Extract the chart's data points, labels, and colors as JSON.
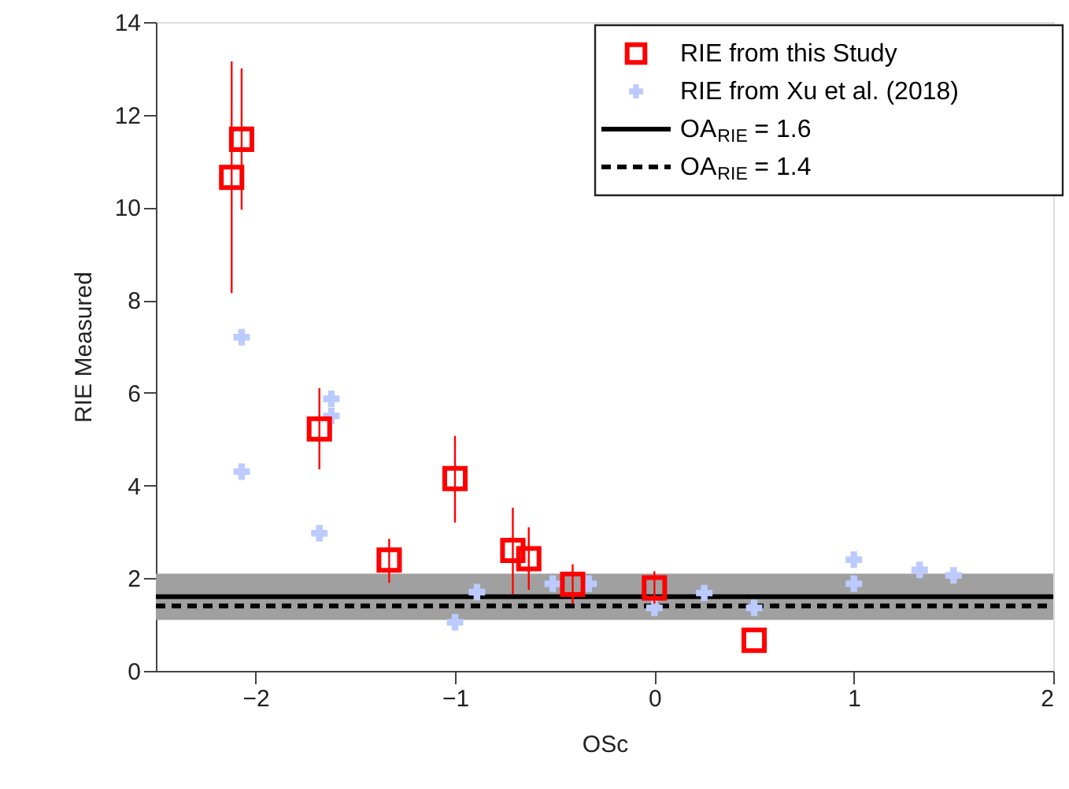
{
  "chart_data": {
    "type": "scatter",
    "xlabel": "OSc",
    "ylabel": "RIE Measured",
    "xlim": [
      -2.5,
      2
    ],
    "xticks": [
      -2,
      -1,
      0,
      1,
      2
    ],
    "ylim": [
      0,
      14
    ],
    "yticks": [
      0,
      2,
      4,
      6,
      8,
      10,
      12,
      14
    ],
    "grid": false,
    "legend": "top right",
    "series": [
      {
        "name": "RIE from this Study",
        "marker": "square",
        "color": "#ff0000",
        "x": [
          -2.12,
          -2.07,
          -1.68,
          -1.33,
          -1.0,
          -0.71,
          -0.63,
          -0.41,
          0.0,
          0.5
        ],
        "values": [
          10.65,
          11.47,
          5.22,
          2.39,
          4.15,
          2.6,
          2.42,
          1.87,
          1.79,
          0.66
        ],
        "errors": [
          [
            8.15,
            13.15
          ],
          [
            9.95,
            13.0
          ],
          [
            4.35,
            6.1
          ],
          [
            1.9,
            2.85
          ],
          [
            3.2,
            5.07
          ],
          [
            1.65,
            3.52
          ],
          [
            1.75,
            3.1
          ],
          [
            1.45,
            2.3
          ],
          [
            1.45,
            2.15
          ],
          null
        ]
      },
      {
        "name": "RIE from Xu et al. (2018)",
        "marker": "cross",
        "color": "#bccbff",
        "x": [
          -2.07,
          -2.07,
          -1.68,
          -1.62,
          -1.62,
          -1.0,
          -0.89,
          -0.51,
          -0.33,
          0.0,
          0.25,
          0.5,
          1.0,
          1.0,
          1.33,
          1.5
        ],
        "values": [
          7.2,
          4.3,
          2.97,
          5.87,
          5.5,
          1.05,
          1.7,
          1.88,
          1.88,
          1.36,
          1.68,
          1.36,
          2.4,
          1.88,
          2.18,
          2.06
        ]
      }
    ],
    "ref_lines": [
      {
        "axis": "y",
        "value": 1.6,
        "label": "OA$_{RIE}$ = 1.6",
        "color": "#000000",
        "line_style": "solid"
      },
      {
        "axis": "y",
        "value": 1.4,
        "label": "OA$_{RIE}$ = 1.4",
        "color": "#000000",
        "line_style": "dashed"
      }
    ],
    "bands": [
      {
        "axis": "y",
        "from": 1.1,
        "to": 2.1,
        "color": "#a0a0a0"
      }
    ]
  }
}
